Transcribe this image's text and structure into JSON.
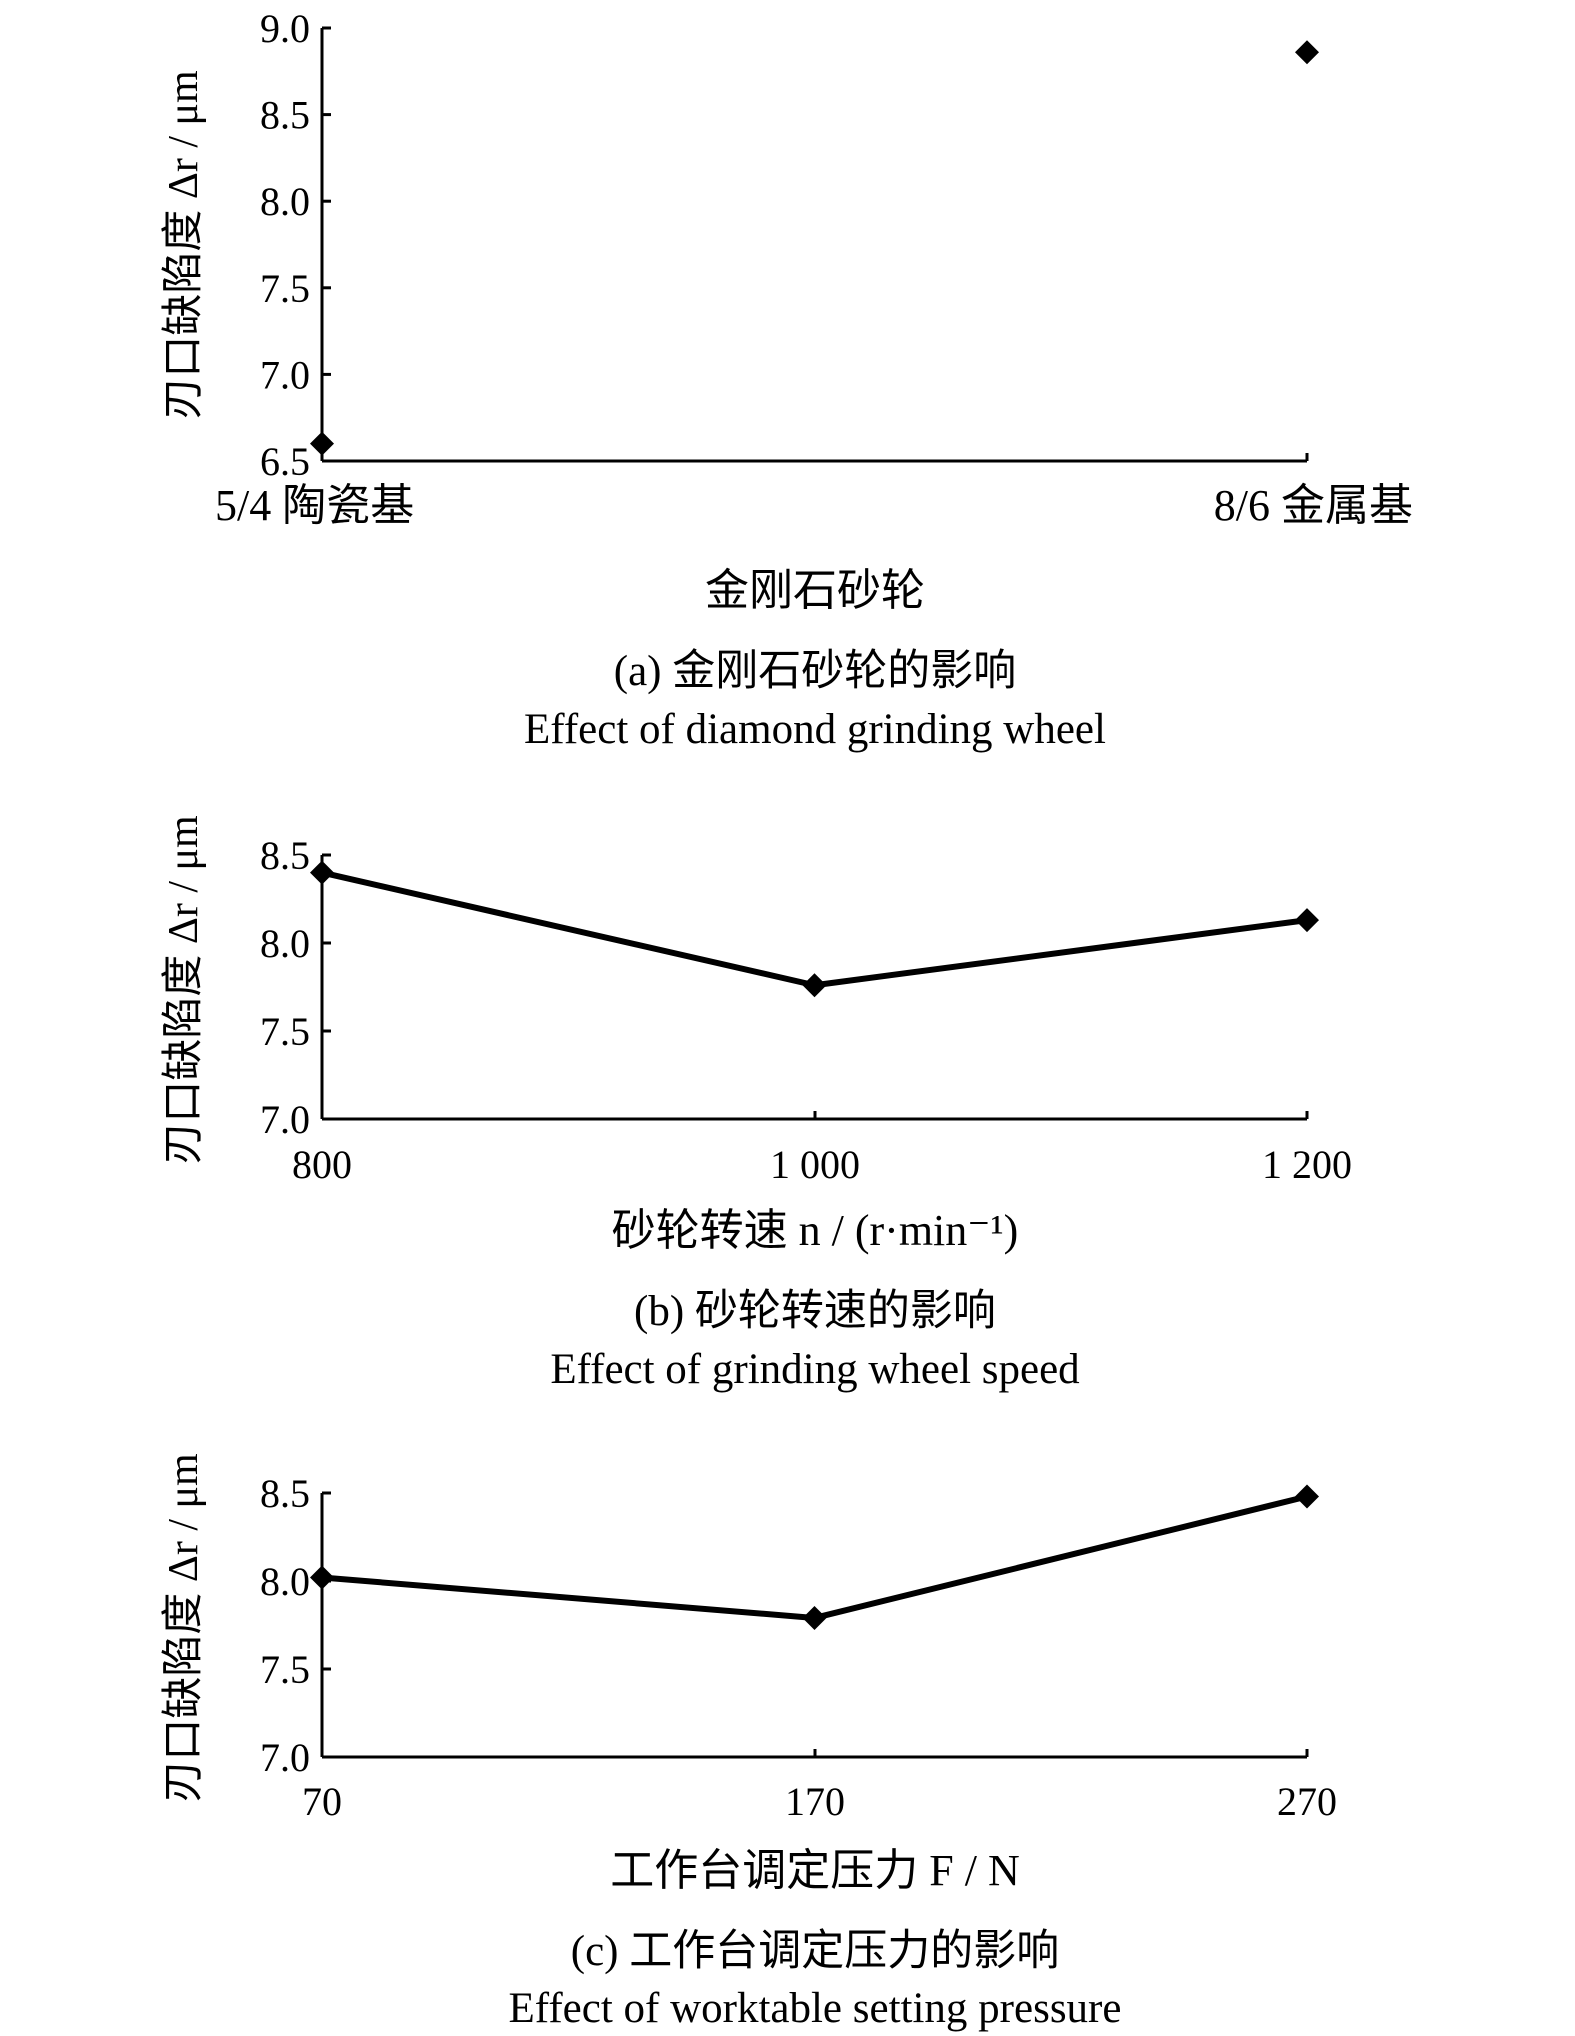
{
  "chart_data": [
    {
      "id": "a",
      "type": "scatter",
      "categories": [
        "5/4 陶瓷基",
        "8/6 金属基"
      ],
      "values": [
        6.6,
        8.86
      ],
      "ylim": [
        6.5,
        9.0
      ],
      "yticks": [
        "9.0",
        "8.5",
        "8.0",
        "7.5",
        "7.0",
        "6.5"
      ],
      "ylabel": "刃口缺陷度 Δr / μm",
      "xlabel": "金刚石砂轮",
      "caption_cn": "(a) 金刚石砂轮的影响",
      "caption_en": "Effect of diamond grinding wheel",
      "marker": "diamond"
    },
    {
      "id": "b",
      "type": "line",
      "categories": [
        "800",
        "1 000",
        "1 200"
      ],
      "values": [
        8.4,
        7.76,
        8.13
      ],
      "ylim": [
        7.0,
        8.5
      ],
      "yticks": [
        "8.5",
        "8.0",
        "7.5",
        "7.0"
      ],
      "ylabel": "刃口缺陷度 Δr / μm",
      "xlabel": "砂轮转速 n / (r·min⁻¹)",
      "caption_cn": "(b) 砂轮转速的影响",
      "caption_en": "Effect of grinding wheel speed",
      "marker": "diamond"
    },
    {
      "id": "c",
      "type": "line",
      "categories": [
        "70",
        "170",
        "270"
      ],
      "values": [
        8.02,
        7.79,
        8.48
      ],
      "ylim": [
        7.0,
        8.5
      ],
      "yticks": [
        "8.5",
        "8.0",
        "7.5",
        "7.0"
      ],
      "ylabel": "刃口缺陷度 Δr / μm",
      "xlabel": "工作台调定压力 F / N",
      "caption_cn": "(c) 工作台调定压力的影响",
      "caption_en": "Effect of worktable setting pressure",
      "marker": "diamond"
    }
  ]
}
